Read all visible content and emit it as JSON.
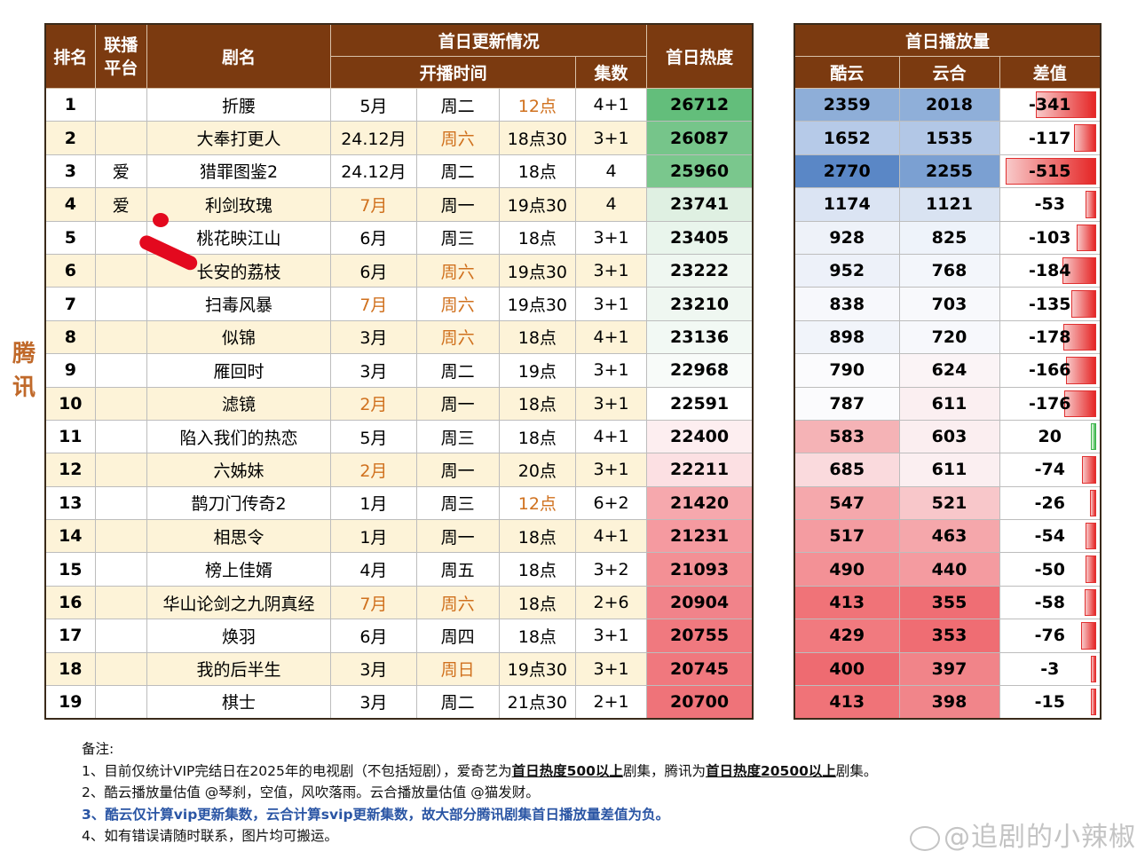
{
  "side_label": "腾讯",
  "left_headers": {
    "rank": "排名",
    "platform": "联播平台",
    "name": "剧名",
    "update": "首日更新情况",
    "start": "开播时间",
    "episodes": "集数",
    "heat": "首日热度"
  },
  "right_headers": {
    "title": "首日播放量",
    "kuyun": "酷云",
    "yunhe": "云合",
    "diff": "差值"
  },
  "rows": [
    {
      "rank": "1",
      "platform": "",
      "name": "折腰",
      "month": "5月",
      "weekday": "周二",
      "time": "12点",
      "eps": "4+1",
      "heat": "26712",
      "kuyun": "2359",
      "yunhe": "2018",
      "diff": "-341",
      "diff_value": -341,
      "orange": [
        "time"
      ],
      "heat_color": "#63be7b",
      "kuyun_color": "#8eaed8",
      "yunhe_color": "#8fafd9"
    },
    {
      "rank": "2",
      "platform": "",
      "name": "大奉打更人",
      "month": "24.12月",
      "weekday": "周六",
      "time": "18点30",
      "eps": "3+1",
      "heat": "26087",
      "kuyun": "1652",
      "yunhe": "1535",
      "diff": "-117",
      "diff_value": -117,
      "orange": [
        "weekday"
      ],
      "heat_color": "#76c58a",
      "kuyun_color": "#b6cae8",
      "yunhe_color": "#b2c7e6"
    },
    {
      "rank": "3",
      "platform": "爱",
      "name": "猎罪图鉴2",
      "month": "24.12月",
      "weekday": "周二",
      "time": "18点",
      "eps": "4",
      "heat": "25960",
      "kuyun": "2770",
      "yunhe": "2255",
      "diff": "-515",
      "diff_value": -515,
      "orange": [],
      "heat_color": "#7ac78d",
      "kuyun_color": "#5a87c6",
      "yunhe_color": "#7ba0d2"
    },
    {
      "rank": "4",
      "platform": "爱",
      "name": "利剑玫瑰",
      "month": "7月",
      "weekday": "周一",
      "time": "19点30",
      "eps": "4",
      "heat": "23741",
      "kuyun": "1174",
      "yunhe": "1121",
      "diff": "-53",
      "diff_value": -53,
      "orange": [
        "month"
      ],
      "heat_color": "#dff0e2",
      "kuyun_color": "#dbe4f3",
      "yunhe_color": "#d9e3f2"
    },
    {
      "rank": "5",
      "platform": "",
      "name": "桃花映江山",
      "month": "6月",
      "weekday": "周三",
      "time": "18点",
      "eps": "3+1",
      "heat": "23405",
      "kuyun": "928",
      "yunhe": "825",
      "diff": "-103",
      "diff_value": -103,
      "orange": [],
      "heat_color": "#e9f5ec",
      "kuyun_color": "#eef2f9",
      "yunhe_color": "#eef3fa"
    },
    {
      "rank": "6",
      "platform": "",
      "name": "长安的荔枝",
      "month": "6月",
      "weekday": "周六",
      "time": "19点30",
      "eps": "3+1",
      "heat": "23222",
      "kuyun": "952",
      "yunhe": "768",
      "diff": "-184",
      "diff_value": -184,
      "orange": [
        "weekday"
      ],
      "heat_color": "#eff7f1",
      "kuyun_color": "#edf1f9",
      "yunhe_color": "#f3f6fb"
    },
    {
      "rank": "7",
      "platform": "",
      "name": "扫毒风暴",
      "month": "7月",
      "weekday": "周六",
      "time": "19点30",
      "eps": "3+1",
      "heat": "23210",
      "kuyun": "838",
      "yunhe": "703",
      "diff": "-135",
      "diff_value": -135,
      "orange": [
        "month",
        "weekday"
      ],
      "heat_color": "#eff7f1",
      "kuyun_color": "#f7f8fc",
      "yunhe_color": "#f8f9fc"
    },
    {
      "rank": "8",
      "platform": "",
      "name": "似锦",
      "month": "3月",
      "weekday": "周六",
      "time": "18点",
      "eps": "4+1",
      "heat": "23136",
      "kuyun": "898",
      "yunhe": "720",
      "diff": "-178",
      "diff_value": -178,
      "orange": [
        "weekday"
      ],
      "heat_color": "#f2f9f4",
      "kuyun_color": "#f1f4fa",
      "yunhe_color": "#f7f8fc"
    },
    {
      "rank": "9",
      "platform": "",
      "name": "雁回时",
      "month": "3月",
      "weekday": "周二",
      "time": "19点",
      "eps": "3+1",
      "heat": "22968",
      "kuyun": "790",
      "yunhe": "624",
      "diff": "-166",
      "diff_value": -166,
      "orange": [],
      "heat_color": "#f8fbf9",
      "kuyun_color": "#fbfbfd",
      "yunhe_color": "#fbf4f6"
    },
    {
      "rank": "10",
      "platform": "",
      "name": "滤镜",
      "month": "2月",
      "weekday": "周一",
      "time": "18点",
      "eps": "3+1",
      "heat": "22591",
      "kuyun": "787",
      "yunhe": "611",
      "diff": "-176",
      "diff_value": -176,
      "orange": [
        "month"
      ],
      "heat_color": "#ffffff",
      "kuyun_color": "#fbfbfd",
      "yunhe_color": "#fbeff1"
    },
    {
      "rank": "11",
      "platform": "",
      "name": "陷入我们的热恋",
      "month": "5月",
      "weekday": "周三",
      "time": "18点",
      "eps": "4+1",
      "heat": "22400",
      "kuyun": "583",
      "yunhe": "603",
      "diff": "20",
      "diff_value": 20,
      "orange": [],
      "heat_color": "#fdeef0",
      "kuyun_color": "#f5b3b6",
      "yunhe_color": "#fbeef0"
    },
    {
      "rank": "12",
      "platform": "",
      "name": "六姊妹",
      "month": "2月",
      "weekday": "周一",
      "time": "20点",
      "eps": "3+1",
      "heat": "22211",
      "kuyun": "685",
      "yunhe": "611",
      "diff": "-74",
      "diff_value": -74,
      "orange": [
        "month"
      ],
      "heat_color": "#fce0e3",
      "kuyun_color": "#fadadd",
      "yunhe_color": "#fbeff1"
    },
    {
      "rank": "13",
      "platform": "",
      "name": "鹊刀门传奇2",
      "month": "1月",
      "weekday": "周三",
      "time": "12点",
      "eps": "6+2",
      "heat": "21420",
      "kuyun": "547",
      "yunhe": "521",
      "diff": "-26",
      "diff_value": -26,
      "orange": [
        "time"
      ],
      "heat_color": "#f6a8ad",
      "kuyun_color": "#f5a8ac",
      "yunhe_color": "#f8c7ca"
    },
    {
      "rank": "14",
      "platform": "",
      "name": "相思令",
      "month": "1月",
      "weekday": "周一",
      "time": "18点",
      "eps": "4+1",
      "heat": "21231",
      "kuyun": "517",
      "yunhe": "463",
      "diff": "-54",
      "diff_value": -54,
      "orange": [],
      "heat_color": "#f59aa0",
      "kuyun_color": "#f49ca1",
      "yunhe_color": "#f5a7ab"
    },
    {
      "rank": "15",
      "platform": "",
      "name": "榜上佳婿",
      "month": "4月",
      "weekday": "周五",
      "time": "18点",
      "eps": "3+2",
      "heat": "21093",
      "kuyun": "490",
      "yunhe": "440",
      "diff": "-50",
      "diff_value": -50,
      "orange": [],
      "heat_color": "#f39095",
      "kuyun_color": "#f39196",
      "yunhe_color": "#f49ba0"
    },
    {
      "rank": "16",
      "platform": "",
      "name": "华山论剑之九阴真经",
      "month": "7月",
      "weekday": "周六",
      "time": "18点",
      "eps": "2+6",
      "heat": "20904",
      "kuyun": "413",
      "yunhe": "355",
      "diff": "-58",
      "diff_value": -58,
      "orange": [
        "month",
        "weekday"
      ],
      "heat_color": "#f1838a",
      "kuyun_color": "#f07378",
      "yunhe_color": "#ef6e74"
    },
    {
      "rank": "17",
      "platform": "",
      "name": "焕羽",
      "month": "6月",
      "weekday": "周四",
      "time": "18点",
      "eps": "3+1",
      "heat": "20755",
      "kuyun": "429",
      "yunhe": "353",
      "diff": "-76",
      "diff_value": -76,
      "orange": [],
      "heat_color": "#f0797f",
      "kuyun_color": "#f17a7f",
      "yunhe_color": "#ef6d73"
    },
    {
      "rank": "18",
      "platform": "",
      "name": "我的后半生",
      "month": "3月",
      "weekday": "周日",
      "time": "19点30",
      "eps": "3+1",
      "heat": "20745",
      "kuyun": "400",
      "yunhe": "397",
      "diff": "-3",
      "diff_value": -3,
      "orange": [
        "weekday"
      ],
      "heat_color": "#f0787e",
      "kuyun_color": "#ee6b71",
      "yunhe_color": "#f18489"
    },
    {
      "rank": "19",
      "platform": "",
      "name": "棋士",
      "month": "3月",
      "weekday": "周二",
      "time": "21点30",
      "eps": "2+1",
      "heat": "20700",
      "kuyun": "413",
      "yunhe": "398",
      "diff": "-15",
      "diff_value": -15,
      "orange": [],
      "heat_color": "#ef7379",
      "kuyun_color": "#f07378",
      "yunhe_color": "#f1858a"
    }
  ],
  "notes": {
    "title": "备注:",
    "line1_pre": "1、目前仅统计VIP完结日在2025年的电视剧（不包括短剧），爱奇艺为",
    "line1_b1": "首日热度500以上",
    "line1_mid": "剧集，腾讯为",
    "line1_b2": "首日热度20500以上",
    "line1_post": "剧集。",
    "line2": "2、酷云播放量估值 @琴刹，空值，风吹落雨。云合播放量估值 @猫发财。",
    "line3": "3、酷云仅计算vip更新集数，云合计算svip更新集数，故大部分腾讯剧集首日播放量差值为负。",
    "line4": "4、如有错误请随时联系，图片均可搬运。"
  },
  "watermark": "@追剧的小辣椒"
}
